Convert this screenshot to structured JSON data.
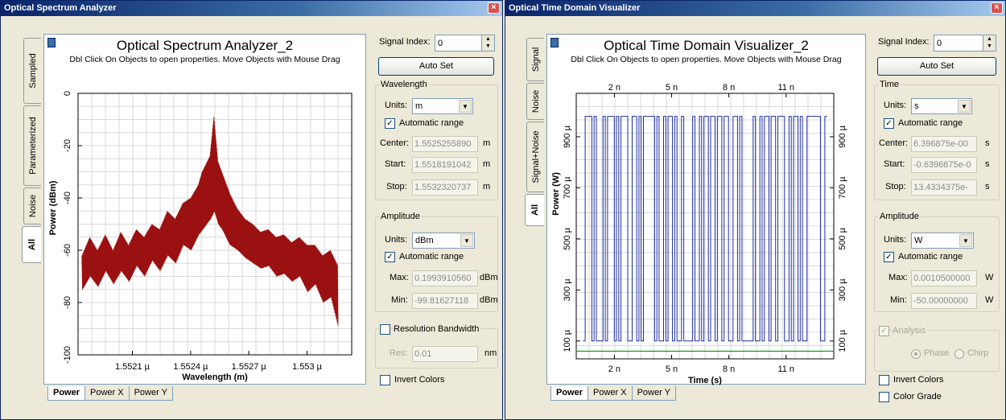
{
  "osa": {
    "window_title": "Optical Spectrum Analyzer",
    "plot_title": "Optical Spectrum Analyzer_2",
    "plot_subtitle": "Dbl Click On Objects to open properties.  Move Objects with Mouse Drag",
    "side_tabs": [
      "Sampled",
      "Parameterized",
      "Noise",
      "All"
    ],
    "bottom_tabs": [
      "Power",
      "Power X",
      "Power Y"
    ],
    "signal_index_label": "Signal Index:",
    "signal_index_value": "0",
    "auto_set": "Auto Set",
    "wavelength": {
      "legend": "Wavelength",
      "units_label": "Units:",
      "units_value": "m",
      "auto_range_label": "Automatic range",
      "center_label": "Center:",
      "center_value": "1.5525255890",
      "center_unit": "m",
      "start_label": "Start:",
      "start_value": "1.5518191042",
      "start_unit": "m",
      "stop_label": "Stop:",
      "stop_value": "1.5532320737",
      "stop_unit": "m"
    },
    "amplitude": {
      "legend": "Amplitude",
      "units_label": "Units:",
      "units_value": "dBm",
      "auto_range_label": "Automatic range",
      "max_label": "Max:",
      "max_value": "0.1993910560",
      "max_unit": "dBm",
      "min_label": "Min:",
      "min_value": "-99.81627118",
      "min_unit": "dBm"
    },
    "resolution": {
      "legend": "Resolution Bandwidth",
      "res_label": "Res:",
      "res_value": "0.01",
      "res_unit": "nm"
    },
    "invert_colors": "Invert Colors"
  },
  "otdv": {
    "window_title": "Optical Time Domain Visualizer",
    "plot_title": "Optical Time Domain Visualizer_2",
    "plot_subtitle": "Dbl Click On Objects to open properties.  Move Objects with Mouse Drag",
    "side_tabs": [
      "Signal",
      "Noise",
      "Signal+Noise",
      "All"
    ],
    "bottom_tabs": [
      "Power",
      "Power X",
      "Power Y"
    ],
    "signal_index_label": "Signal Index:",
    "signal_index_value": "0",
    "auto_set": "Auto Set",
    "time": {
      "legend": "Time",
      "units_label": "Units:",
      "units_value": "s",
      "auto_range_label": "Automatic range",
      "center_label": "Center:",
      "center_value": "6.396875e-00",
      "center_unit": "s",
      "start_label": "Start:",
      "start_value": "-0.6396875e-0",
      "start_unit": "s",
      "stop_label": "Stop:",
      "stop_value": "13.4334375e-",
      "stop_unit": "s"
    },
    "amplitude": {
      "legend": "Amplitude",
      "units_label": "Units:",
      "units_value": "W",
      "auto_range_label": "Automatic range",
      "max_label": "Max:",
      "max_value": "0.0010500000",
      "max_unit": "W",
      "min_label": "Min:",
      "min_value": "-50.00000000",
      "min_unit": "W"
    },
    "analysis": {
      "legend": "Analysis",
      "phase": "Phase",
      "chirp": "Chirp"
    },
    "invert_colors": "Invert Colors",
    "color_grade": "Color Grade"
  },
  "chart_data": [
    {
      "type": "line",
      "title": "",
      "xlabel": "Wavelength (m)",
      "ylabel": "Power (dBm)",
      "xlim": [
        1.55182,
        1.55323
      ],
      "ylim": [
        -100,
        0
      ],
      "x_ticks": [
        {
          "v": 1.5521,
          "label": "1.5521 µ"
        },
        {
          "v": 1.5524,
          "label": "1.5524 µ"
        },
        {
          "v": 1.5527,
          "label": "1.5527 µ"
        },
        {
          "v": 1.553,
          "label": "1.553 µ"
        }
      ],
      "y_ticks": [
        {
          "v": 0,
          "label": "0"
        },
        {
          "v": -20,
          "label": "-20"
        },
        {
          "v": -40,
          "label": "-40"
        },
        {
          "v": -60,
          "label": "-60"
        },
        {
          "v": -80,
          "label": "-80"
        },
        {
          "v": -100,
          "label": "-100"
        }
      ],
      "grid": true,
      "color": "#9b1010",
      "series": [
        {
          "x": [
            1.55184,
            1.55188,
            1.55192,
            1.55196,
            1.552,
            1.55204,
            1.55208,
            1.55212,
            1.55216,
            1.5522,
            1.55224,
            1.55228,
            1.55232,
            1.55236,
            1.5524,
            1.55244,
            1.55246,
            1.55248,
            1.5525,
            1.55252,
            1.55254,
            1.55256,
            1.55258,
            1.5526,
            1.55264,
            1.55268,
            1.55272,
            1.55276,
            1.5528,
            1.55284,
            1.55288,
            1.55292,
            1.55296,
            1.553,
            1.55304,
            1.55308,
            1.55312,
            1.55316
          ],
          "y_high": [
            -62,
            -55,
            -60,
            -54,
            -60,
            -53,
            -58,
            -52,
            -55,
            -50,
            -52,
            -45,
            -48,
            -42,
            -40,
            -35,
            -30,
            -27,
            -24,
            -9,
            -26,
            -30,
            -34,
            -38,
            -44,
            -48,
            -50,
            -53,
            -52,
            -55,
            -54,
            -57,
            -55,
            -58,
            -58,
            -62,
            -60,
            -66
          ],
          "y_low": [
            -75,
            -70,
            -74,
            -68,
            -73,
            -68,
            -72,
            -66,
            -70,
            -64,
            -68,
            -62,
            -65,
            -58,
            -60,
            -54,
            -52,
            -50,
            -48,
            -45,
            -50,
            -52,
            -55,
            -58,
            -60,
            -63,
            -65,
            -67,
            -66,
            -70,
            -69,
            -72,
            -70,
            -76,
            -73,
            -80,
            -78,
            -90
          ]
        }
      ]
    },
    {
      "type": "line",
      "title": "",
      "xlabel": "Time (s)",
      "ylabel": "Power (W)",
      "xlim": [
        0,
        13.5
      ],
      "ylim": [
        3e-05,
        0.00107
      ],
      "x_ticks": [
        {
          "v": 2,
          "label": "2 n"
        },
        {
          "v": 5,
          "label": "5 n"
        },
        {
          "v": 8,
          "label": "8 n"
        },
        {
          "v": 11,
          "label": "11 n"
        }
      ],
      "y_ticks": [
        {
          "v": 0.0001,
          "label": "100 µ"
        },
        {
          "v": 0.0003,
          "label": "300 µ"
        },
        {
          "v": 0.0005,
          "label": "500 µ"
        },
        {
          "v": 0.0007,
          "label": "700 µ"
        },
        {
          "v": 0.0009,
          "label": "900 µ"
        }
      ],
      "grid": true,
      "series": [
        {
          "name": "",
          "color": "#1f2f9e",
          "level_high": 0.00098,
          "level_low": 0.0001,
          "bits": "0111010001011101011100110101111101001011010010000100101101101101100110100000100101101101110010110100111111001"
        },
        {
          "name": "",
          "color": "#10a010",
          "constant": 6e-05
        }
      ]
    }
  ]
}
